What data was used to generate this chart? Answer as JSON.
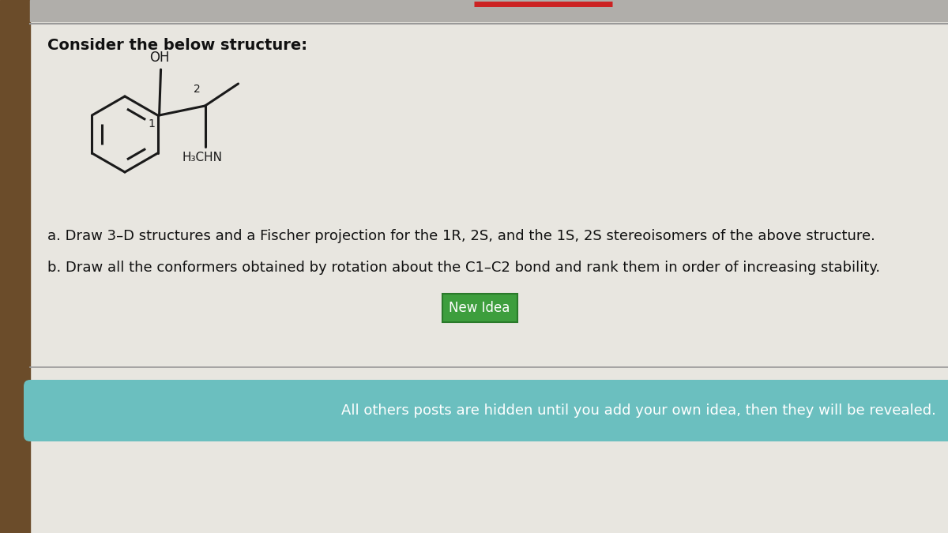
{
  "bg_color": "#d0cec8",
  "main_bg": "#e8e6e0",
  "title_text": "Consider the below structure:",
  "title_fontsize": 14,
  "label_a": "a. Draw 3–D structures and a Fischer projection for the 1R, 2S, and the 1S, 2S stereoisomers of the above structure.",
  "label_b": "b. Draw all the conformers obtained by rotation about the C1–C2 bond and rank them in order of increasing stability.",
  "label_fontsize": 13,
  "button_text": "New Idea",
  "button_color": "#3d9e3d",
  "button_text_color": "#ffffff",
  "button_fontsize": 12,
  "banner_text": "All others posts are hidden until you add your own idea, then they will be revealed.",
  "banner_bg": "#6bbfbf",
  "banner_text_color": "#ffffff",
  "banner_fontsize": 13,
  "separator_color": "#999999",
  "left_sidebar_color": "#6b4c2a",
  "molecule_color": "#1a1a1a",
  "top_accent_color": "#cc2222",
  "top_bar_bg": "#b0aeaa"
}
